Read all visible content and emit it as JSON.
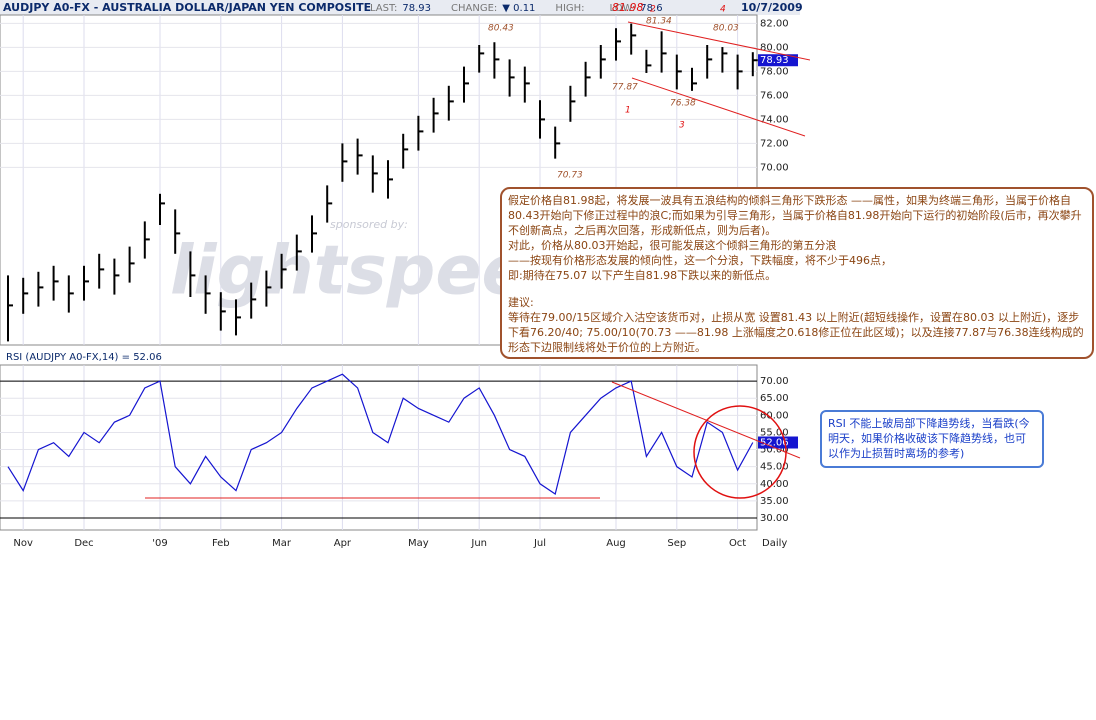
{
  "chart_data": [
    {
      "type": "ohlc",
      "title": "AUDJPY A0-FX - AUSTRALIA DOLLAR/JAPAN YEN COMPOSITE",
      "stats": [
        {
          "label": "LAST:",
          "value": "78.93"
        },
        {
          "label": "CHANGE:",
          "value": "▼ 0.11"
        },
        {
          "label": "HIGH:",
          "value": ""
        },
        {
          "label": "LOW:",
          "value": "78.6"
        }
      ],
      "date": "10/7/2009",
      "high": [
        61.0,
        60.8,
        61.3,
        61.8,
        61.0,
        61.8,
        62.8,
        62.4,
        63.4,
        65.5,
        67.8,
        66.5,
        63.0,
        61.0,
        59.6,
        59.0,
        60.4,
        61.4,
        62.8,
        64.4,
        66.0,
        68.5,
        72.0,
        72.4,
        71.0,
        70.6,
        72.8,
        74.3,
        75.8,
        76.8,
        78.4,
        80.2,
        80.43,
        79.0,
        78.4,
        75.6,
        73.4,
        76.8,
        78.8,
        80.2,
        81.6,
        81.98,
        79.8,
        81.34,
        79.4,
        78.3,
        80.2,
        80.03,
        79.4,
        79.6
      ],
      "low": [
        55.5,
        57.8,
        58.4,
        58.9,
        57.9,
        58.9,
        59.9,
        59.4,
        60.4,
        62.4,
        65.2,
        62.8,
        59.2,
        57.8,
        56.4,
        56.0,
        57.4,
        58.4,
        59.9,
        61.4,
        62.9,
        65.4,
        68.8,
        69.4,
        67.9,
        67.4,
        69.9,
        71.4,
        72.9,
        73.9,
        75.4,
        77.9,
        77.4,
        75.9,
        75.4,
        72.4,
        70.73,
        73.8,
        75.9,
        77.4,
        78.9,
        79.4,
        77.87,
        77.9,
        76.5,
        76.38,
        77.4,
        77.9,
        76.5,
        77.6
      ],
      "close": [
        58.5,
        59.5,
        60.0,
        60.5,
        59.5,
        60.5,
        61.5,
        61.0,
        62.0,
        64.0,
        67.0,
        64.5,
        61.0,
        59.5,
        58.0,
        57.5,
        59.0,
        60.0,
        61.5,
        63.0,
        64.5,
        67.0,
        70.5,
        71.0,
        69.5,
        69.0,
        71.5,
        73.0,
        74.5,
        75.5,
        77.0,
        79.5,
        79.0,
        77.5,
        77.0,
        74.0,
        72.0,
        75.5,
        77.5,
        79.0,
        80.5,
        81.0,
        78.5,
        79.5,
        78.0,
        77.0,
        79.0,
        79.5,
        78.0,
        78.93
      ],
      "last_value_label": "78.93",
      "color": "#000000",
      "ylim": [
        55.2,
        82.7
      ],
      "yticks": [
        {
          "value": 70,
          "label": "70.00"
        },
        {
          "value": 72,
          "label": "72.00"
        },
        {
          "value": 74,
          "label": "74.00"
        },
        {
          "value": 76,
          "label": "76.00"
        },
        {
          "value": 78,
          "label": "78.00"
        },
        {
          "value": 80,
          "label": "80.00"
        },
        {
          "value": 82,
          "label": "82.00"
        }
      ],
      "grid": true,
      "annotations": [
        "80.43",
        "81.98",
        "2",
        "81.34",
        "4",
        "80.03",
        "77.87",
        "1",
        "76.38",
        "3",
        "70.73"
      ],
      "watermark": [
        "sponsored by:",
        "lightspeed"
      ]
    },
    {
      "type": "line",
      "title": "RSI (AUDJPY A0-FX,14) = 52.06",
      "categories": [
        null,
        "Nov",
        null,
        null,
        null,
        "Dec",
        null,
        null,
        null,
        null,
        "'09",
        null,
        null,
        null,
        "Feb",
        null,
        null,
        null,
        "Mar",
        null,
        null,
        null,
        "Apr",
        null,
        null,
        null,
        null,
        "May",
        null,
        null,
        null,
        "Jun",
        null,
        null,
        null,
        "Jul",
        null,
        null,
        null,
        null,
        "Aug",
        null,
        null,
        null,
        "Sep",
        null,
        null,
        null,
        "Oct",
        null
      ],
      "values": [
        45,
        38,
        50,
        52,
        48,
        55,
        52,
        58,
        60,
        68,
        70,
        45,
        40,
        48,
        42,
        38,
        50,
        52,
        55,
        62,
        68,
        70,
        72,
        68,
        55,
        52,
        65,
        62,
        60,
        58,
        65,
        68,
        60,
        50,
        48,
        40,
        37,
        55,
        60,
        65,
        68,
        70,
        48,
        55,
        45,
        42,
        58,
        55,
        44,
        52.06
      ],
      "last_value_label": "52.06",
      "color": "#1515d0",
      "ylim": [
        26.5,
        74.7
      ],
      "yticks": [
        {
          "value": 30,
          "label": "30.00"
        },
        {
          "value": 35,
          "label": "35.00"
        },
        {
          "value": 40,
          "label": "40.00"
        },
        {
          "value": 45,
          "label": "45.00"
        },
        {
          "value": 50,
          "label": "50.00"
        },
        {
          "value": 55,
          "label": "55.00"
        },
        {
          "value": 60,
          "label": "60.00"
        },
        {
          "value": 65,
          "label": "65.00"
        },
        {
          "value": 70,
          "label": "70.00"
        }
      ],
      "bounds": [
        30,
        70
      ],
      "grid": true,
      "x_note": "Daily"
    }
  ],
  "comment_box": {
    "paragraphs": [
      "假定价格自81.98起，将发展一波具有五浪结构的倾斜三角形下跌形态 ——属性，如果为终端三角形，当属于价格自80.43开始向下修正过程中的浪C;而如果为引导三角形，当属于价格自81.98开始向下运行的初始阶段(后市，再次攀升不创新高点，之后再次回落，形成新低点，则为后者)。",
      "对此，价格从80.03开始起，很可能发展这个倾斜三角形的第五分浪",
      "——按现有价格形态发展的倾向性，这一个分浪，下跌幅度，将不少于496点，",
      "即:期待在75.07 以下产生自81.98下跌以来的新低点。",
      "建议:",
      "等待在79.00/15区域介入沽空该货币对，止损从宽 设置81.43 以上附近(超短线操作，设置在80.03 以上附近)，逐步下看76.20/40;  75.00/10(70.73 ——81.98 上涨幅度之0.618修正位在此区域)；以及连接77.87与76.38连线构成的形态下边限制线将处于价位的上方附近。"
    ]
  },
  "rsi_note": "RSI 不能上破局部下降趋势线，当看跌(今明天，如果价格收破该下降趋势线，也可以作为止损暂时离场的参考)"
}
